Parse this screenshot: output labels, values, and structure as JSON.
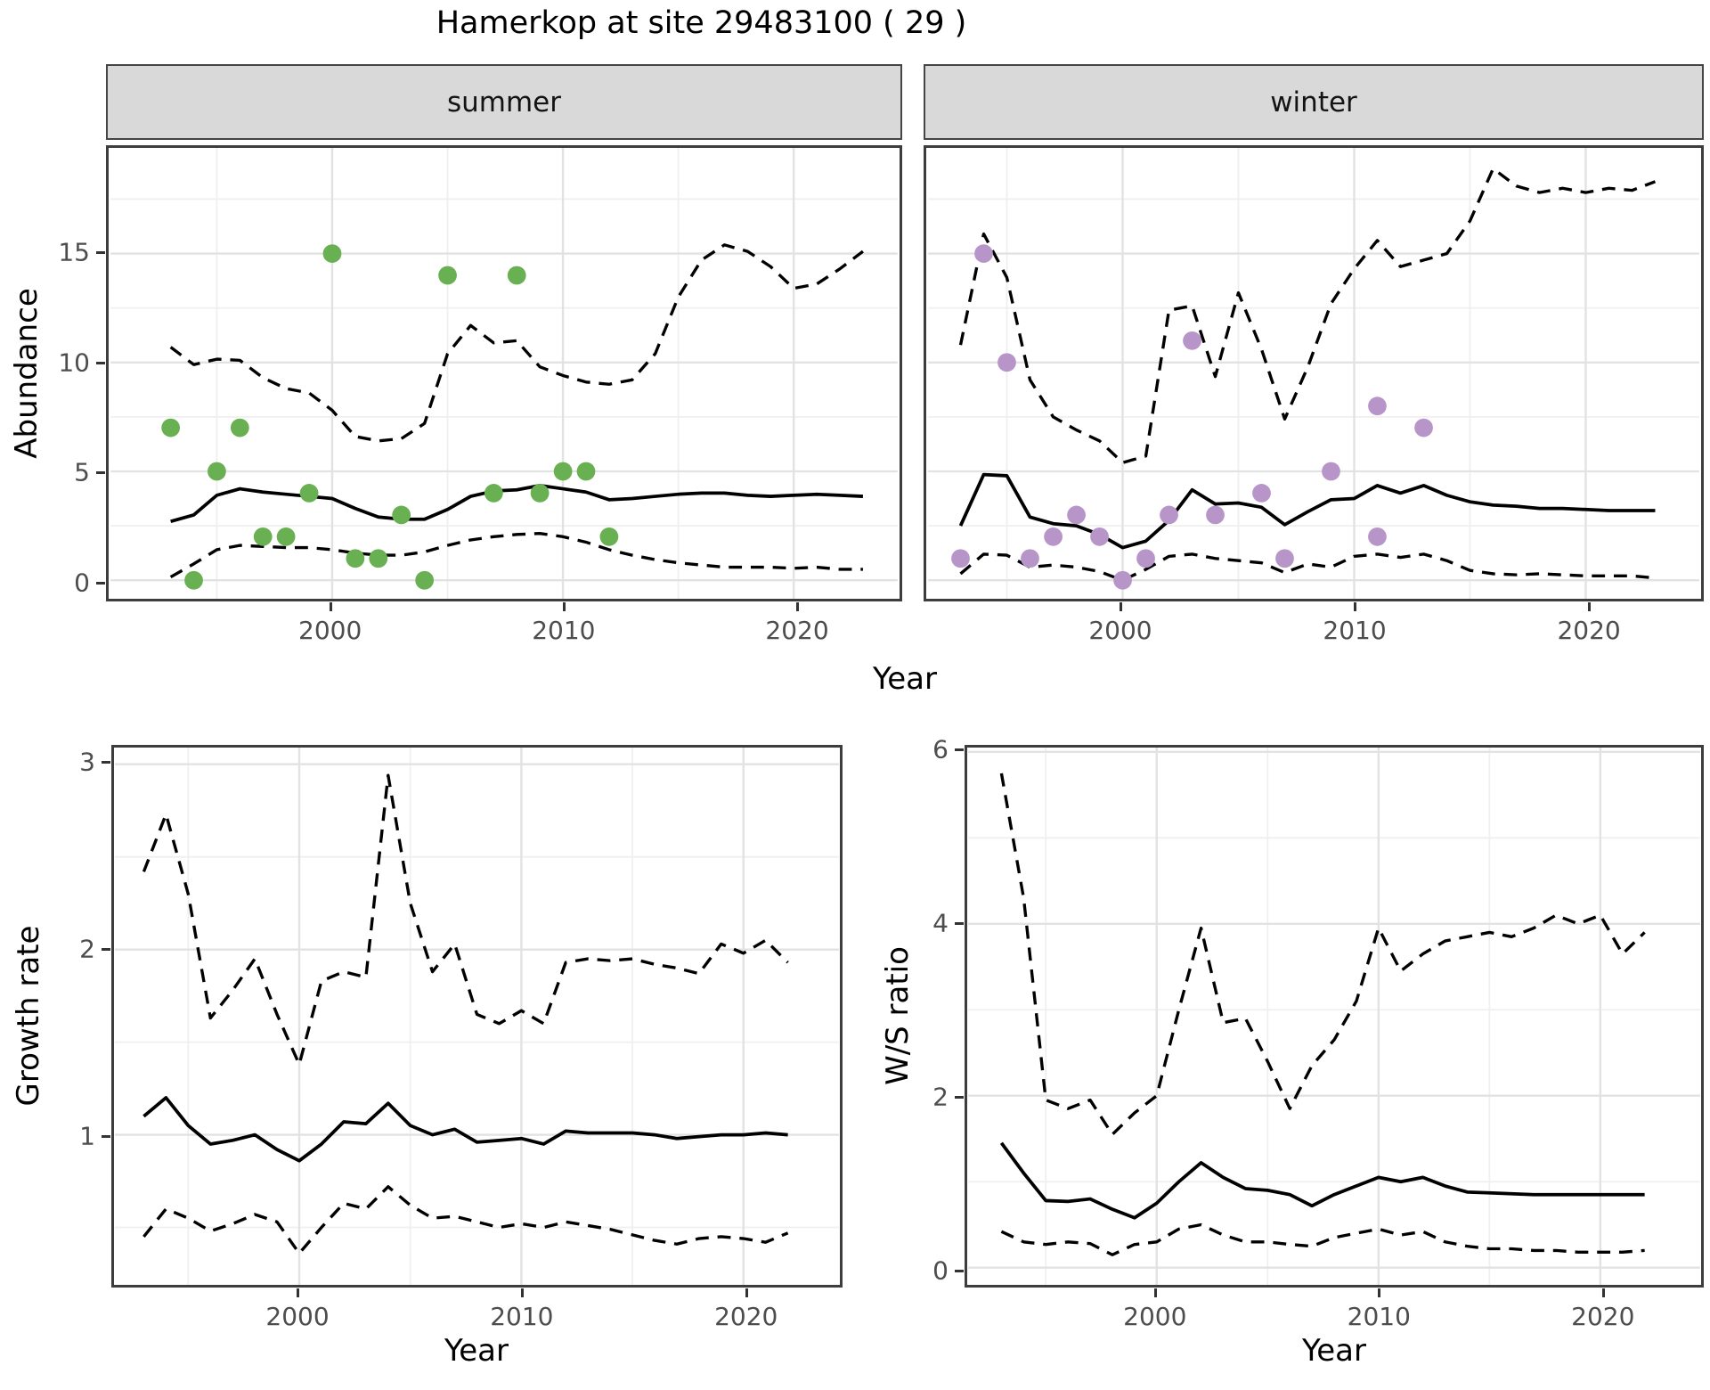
{
  "title": "Hamerkop at site 29483100 ( 29 )",
  "axis_titles": {
    "abundance": "Abundance",
    "year_top": "Year",
    "growth_rate": "Growth rate",
    "year_growth": "Year",
    "ws_ratio": "W/S ratio",
    "year_ws": "Year"
  },
  "facets": {
    "summer": "summer",
    "winter": "winter"
  },
  "colors": {
    "summer_points": "#68b052",
    "winter_points": "#b795c8",
    "line": "#000000",
    "strip_bg": "#d9d9d9",
    "panel_border": "#3d3d3d",
    "grid_major": "#e2e2e2",
    "grid_minor": "#efefef",
    "tick_text": "#4d4d4d"
  },
  "chart_data": [
    {
      "id": "summer-abundance",
      "type": "line",
      "facet_label": "summer",
      "xlabel": "Year",
      "ylabel": "Abundance",
      "xlim": [
        1990.4,
        2024.5
      ],
      "ylim": [
        -0.85,
        19.85
      ],
      "xticks": [
        2000,
        2010,
        2020
      ],
      "yticks": [
        0,
        5,
        10,
        15
      ],
      "xminor": [
        1995,
        2005,
        2015
      ],
      "yminor": [
        2.5,
        7.5,
        12.5,
        17.5
      ],
      "grid": true,
      "legend": "none",
      "years": [
        1993,
        1994,
        1995,
        1996,
        1997,
        1998,
        1999,
        2000,
        2001,
        2002,
        2003,
        2004,
        2005,
        2006,
        2007,
        2008,
        2009,
        2010,
        2011,
        2012,
        2013,
        2014,
        2015,
        2016,
        2017,
        2018,
        2019,
        2020,
        2021,
        2022,
        2023
      ],
      "series": [
        {
          "name": "median",
          "style": "solid",
          "values": [
            2.7,
            3.0,
            3.9,
            4.2,
            4.05,
            3.95,
            3.85,
            3.75,
            3.3,
            2.9,
            2.8,
            2.8,
            3.25,
            3.85,
            4.1,
            4.15,
            4.35,
            4.2,
            4.05,
            3.7,
            3.75,
            3.85,
            3.95,
            4.0,
            4.0,
            3.9,
            3.85,
            3.9,
            3.95,
            3.9,
            3.85
          ]
        },
        {
          "name": "lower95",
          "style": "dashed",
          "values": [
            0.15,
            0.75,
            1.4,
            1.6,
            1.55,
            1.5,
            1.5,
            1.4,
            1.25,
            1.15,
            1.15,
            1.3,
            1.6,
            1.85,
            2.0,
            2.1,
            2.15,
            2.0,
            1.75,
            1.4,
            1.15,
            0.95,
            0.8,
            0.7,
            0.6,
            0.6,
            0.6,
            0.55,
            0.6,
            0.5,
            0.5
          ]
        },
        {
          "name": "upper95",
          "style": "dashed",
          "values": [
            10.7,
            9.9,
            10.15,
            10.1,
            9.3,
            8.8,
            8.6,
            7.8,
            6.6,
            6.4,
            6.5,
            7.2,
            10.4,
            11.7,
            10.9,
            11.0,
            9.8,
            9.4,
            9.1,
            9.0,
            9.2,
            10.4,
            13.0,
            14.7,
            15.4,
            15.1,
            14.4,
            13.4,
            13.6,
            14.3,
            15.1
          ]
        }
      ],
      "points": {
        "name": "observed-counts",
        "color": "#68b052",
        "data": [
          [
            1993,
            7
          ],
          [
            1994,
            0
          ],
          [
            1995,
            5
          ],
          [
            1996,
            7
          ],
          [
            1997,
            2
          ],
          [
            1998,
            2
          ],
          [
            1999,
            4
          ],
          [
            2000,
            15
          ],
          [
            2001,
            1
          ],
          [
            2002,
            1
          ],
          [
            2003,
            3
          ],
          [
            2004,
            0
          ],
          [
            2005,
            14
          ],
          [
            2007,
            4
          ],
          [
            2008,
            14
          ],
          [
            2009,
            4
          ],
          [
            2010,
            5
          ],
          [
            2011,
            5
          ],
          [
            2012,
            2
          ]
        ]
      }
    },
    {
      "id": "winter-abundance",
      "type": "line",
      "facet_label": "winter",
      "xlabel": "Year",
      "ylabel": "Abundance",
      "xlim": [
        1991.6,
        2024.9
      ],
      "ylim": [
        -0.85,
        19.85
      ],
      "xticks": [
        2000,
        2010,
        2020
      ],
      "yticks": [
        0,
        5,
        10,
        15
      ],
      "xminor": [
        1995,
        2005,
        2015
      ],
      "yminor": [
        2.5,
        7.5,
        12.5,
        17.5
      ],
      "grid": true,
      "legend": "none",
      "years": [
        1993,
        1994,
        1995,
        1996,
        1997,
        1998,
        1999,
        2000,
        2001,
        2002,
        2003,
        2004,
        2005,
        2006,
        2007,
        2008,
        2009,
        2010,
        2011,
        2012,
        2013,
        2014,
        2015,
        2016,
        2017,
        2018,
        2019,
        2020,
        2021,
        2022,
        2023
      ],
      "series": [
        {
          "name": "median",
          "style": "solid",
          "values": [
            2.5,
            4.85,
            4.8,
            2.9,
            2.6,
            2.5,
            2.1,
            1.5,
            1.8,
            2.75,
            4.15,
            3.5,
            3.55,
            3.35,
            2.55,
            3.15,
            3.7,
            3.75,
            4.35,
            4.0,
            4.35,
            3.9,
            3.6,
            3.45,
            3.4,
            3.3,
            3.3,
            3.25,
            3.2,
            3.2,
            3.2
          ]
        },
        {
          "name": "lower95",
          "style": "dashed",
          "values": [
            0.3,
            1.2,
            1.15,
            0.6,
            0.7,
            0.6,
            0.4,
            0.0,
            0.5,
            1.1,
            1.2,
            1.0,
            0.9,
            0.8,
            0.35,
            0.75,
            0.6,
            1.1,
            1.2,
            1.05,
            1.2,
            0.9,
            0.45,
            0.3,
            0.25,
            0.3,
            0.25,
            0.2,
            0.2,
            0.2,
            0.1
          ]
        },
        {
          "name": "upper95",
          "style": "dashed",
          "values": [
            10.8,
            15.9,
            13.9,
            9.2,
            7.5,
            6.9,
            6.4,
            5.4,
            5.7,
            12.4,
            12.6,
            9.35,
            13.2,
            10.6,
            7.4,
            9.8,
            12.7,
            14.3,
            15.6,
            14.4,
            14.7,
            15.0,
            16.5,
            18.9,
            18.1,
            17.8,
            18.0,
            17.8,
            18.0,
            17.9,
            18.3
          ]
        }
      ],
      "points": {
        "name": "observed-counts",
        "color": "#b795c8",
        "data": [
          [
            1993,
            1
          ],
          [
            1994,
            15
          ],
          [
            1995,
            10
          ],
          [
            1996,
            1
          ],
          [
            1997,
            2
          ],
          [
            1998,
            3
          ],
          [
            1999,
            2
          ],
          [
            2000,
            0
          ],
          [
            2001,
            1
          ],
          [
            2002,
            3
          ],
          [
            2003,
            11
          ],
          [
            2004,
            3
          ],
          [
            2006,
            4
          ],
          [
            2007,
            1
          ],
          [
            2009,
            5
          ],
          [
            2011,
            8
          ],
          [
            2011,
            2
          ],
          [
            2013,
            7
          ]
        ]
      }
    },
    {
      "id": "growth-rate",
      "type": "line",
      "facet_label": "",
      "xlabel": "Year",
      "ylabel": "Growth rate",
      "xlim": [
        1991.7,
        2024.3
      ],
      "ylim": [
        0.19,
        3.09
      ],
      "xticks": [
        2000,
        2010,
        2020
      ],
      "yticks": [
        1,
        2,
        3
      ],
      "xminor": [
        1995,
        2005,
        2015
      ],
      "yminor": [
        0.5,
        1.5,
        2.5
      ],
      "grid": true,
      "legend": "none",
      "years": [
        1993,
        1994,
        1995,
        1996,
        1997,
        1998,
        1999,
        2000,
        2001,
        2002,
        2003,
        2004,
        2005,
        2006,
        2007,
        2008,
        2009,
        2010,
        2011,
        2012,
        2013,
        2014,
        2015,
        2016,
        2017,
        2018,
        2019,
        2020,
        2021,
        2022
      ],
      "series": [
        {
          "name": "median",
          "style": "solid",
          "values": [
            1.1,
            1.2,
            1.05,
            0.95,
            0.97,
            1.0,
            0.92,
            0.86,
            0.95,
            1.07,
            1.06,
            1.17,
            1.05,
            1.0,
            1.03,
            0.96,
            0.97,
            0.98,
            0.95,
            1.02,
            1.01,
            1.01,
            1.01,
            1.0,
            0.98,
            0.99,
            1.0,
            1.0,
            1.01,
            1.0
          ]
        },
        {
          "name": "lower95",
          "style": "dashed",
          "values": [
            0.45,
            0.6,
            0.55,
            0.48,
            0.52,
            0.57,
            0.53,
            0.36,
            0.5,
            0.63,
            0.6,
            0.72,
            0.62,
            0.55,
            0.56,
            0.53,
            0.5,
            0.52,
            0.5,
            0.53,
            0.51,
            0.49,
            0.46,
            0.43,
            0.41,
            0.44,
            0.45,
            0.44,
            0.42,
            0.47
          ]
        },
        {
          "name": "upper95",
          "style": "dashed",
          "values": [
            2.42,
            2.73,
            2.3,
            1.63,
            1.78,
            1.95,
            1.65,
            1.38,
            1.83,
            1.88,
            1.85,
            2.94,
            2.25,
            1.88,
            2.03,
            1.65,
            1.6,
            1.67,
            1.6,
            1.93,
            1.95,
            1.94,
            1.95,
            1.92,
            1.9,
            1.87,
            2.03,
            1.98,
            2.05,
            1.93
          ]
        }
      ],
      "points": null
    },
    {
      "id": "ws-ratio",
      "type": "line",
      "facet_label": "",
      "xlabel": "Year",
      "ylabel": "W/S ratio",
      "xlim": [
        1991.5,
        2024.5
      ],
      "ylim": [
        -0.2,
        6.05
      ],
      "xticks": [
        2000,
        2010,
        2020
      ],
      "yticks": [
        0,
        2,
        4,
        6
      ],
      "xminor": [
        1995,
        2005,
        2015
      ],
      "yminor": [
        1,
        3,
        5
      ],
      "grid": true,
      "legend": "none",
      "years": [
        1993,
        1994,
        1995,
        1996,
        1997,
        1998,
        1999,
        2000,
        2001,
        2002,
        2003,
        2004,
        2005,
        2006,
        2007,
        2008,
        2009,
        2010,
        2011,
        2012,
        2013,
        2014,
        2015,
        2016,
        2017,
        2018,
        2019,
        2020,
        2021,
        2022
      ],
      "series": [
        {
          "name": "median",
          "style": "solid",
          "values": [
            1.45,
            1.1,
            0.78,
            0.77,
            0.8,
            0.68,
            0.58,
            0.75,
            1.0,
            1.22,
            1.05,
            0.92,
            0.9,
            0.85,
            0.72,
            0.85,
            0.95,
            1.05,
            1.0,
            1.05,
            0.95,
            0.88,
            0.87,
            0.86,
            0.85,
            0.85,
            0.85,
            0.85,
            0.85,
            0.85
          ]
        },
        {
          "name": "lower95",
          "style": "dashed",
          "values": [
            0.42,
            0.3,
            0.27,
            0.3,
            0.28,
            0.15,
            0.27,
            0.3,
            0.45,
            0.5,
            0.38,
            0.3,
            0.3,
            0.27,
            0.25,
            0.35,
            0.4,
            0.45,
            0.38,
            0.42,
            0.3,
            0.25,
            0.22,
            0.22,
            0.2,
            0.2,
            0.18,
            0.18,
            0.18,
            0.2
          ]
        },
        {
          "name": "upper95",
          "style": "dashed",
          "values": [
            5.75,
            4.3,
            1.95,
            1.85,
            1.95,
            1.55,
            1.8,
            2.0,
            3.0,
            3.95,
            2.85,
            2.9,
            2.4,
            1.85,
            2.35,
            2.65,
            3.1,
            3.95,
            3.45,
            3.65,
            3.8,
            3.85,
            3.9,
            3.85,
            3.95,
            4.1,
            4.0,
            4.1,
            3.65,
            3.9
          ]
        }
      ],
      "points": null
    }
  ]
}
